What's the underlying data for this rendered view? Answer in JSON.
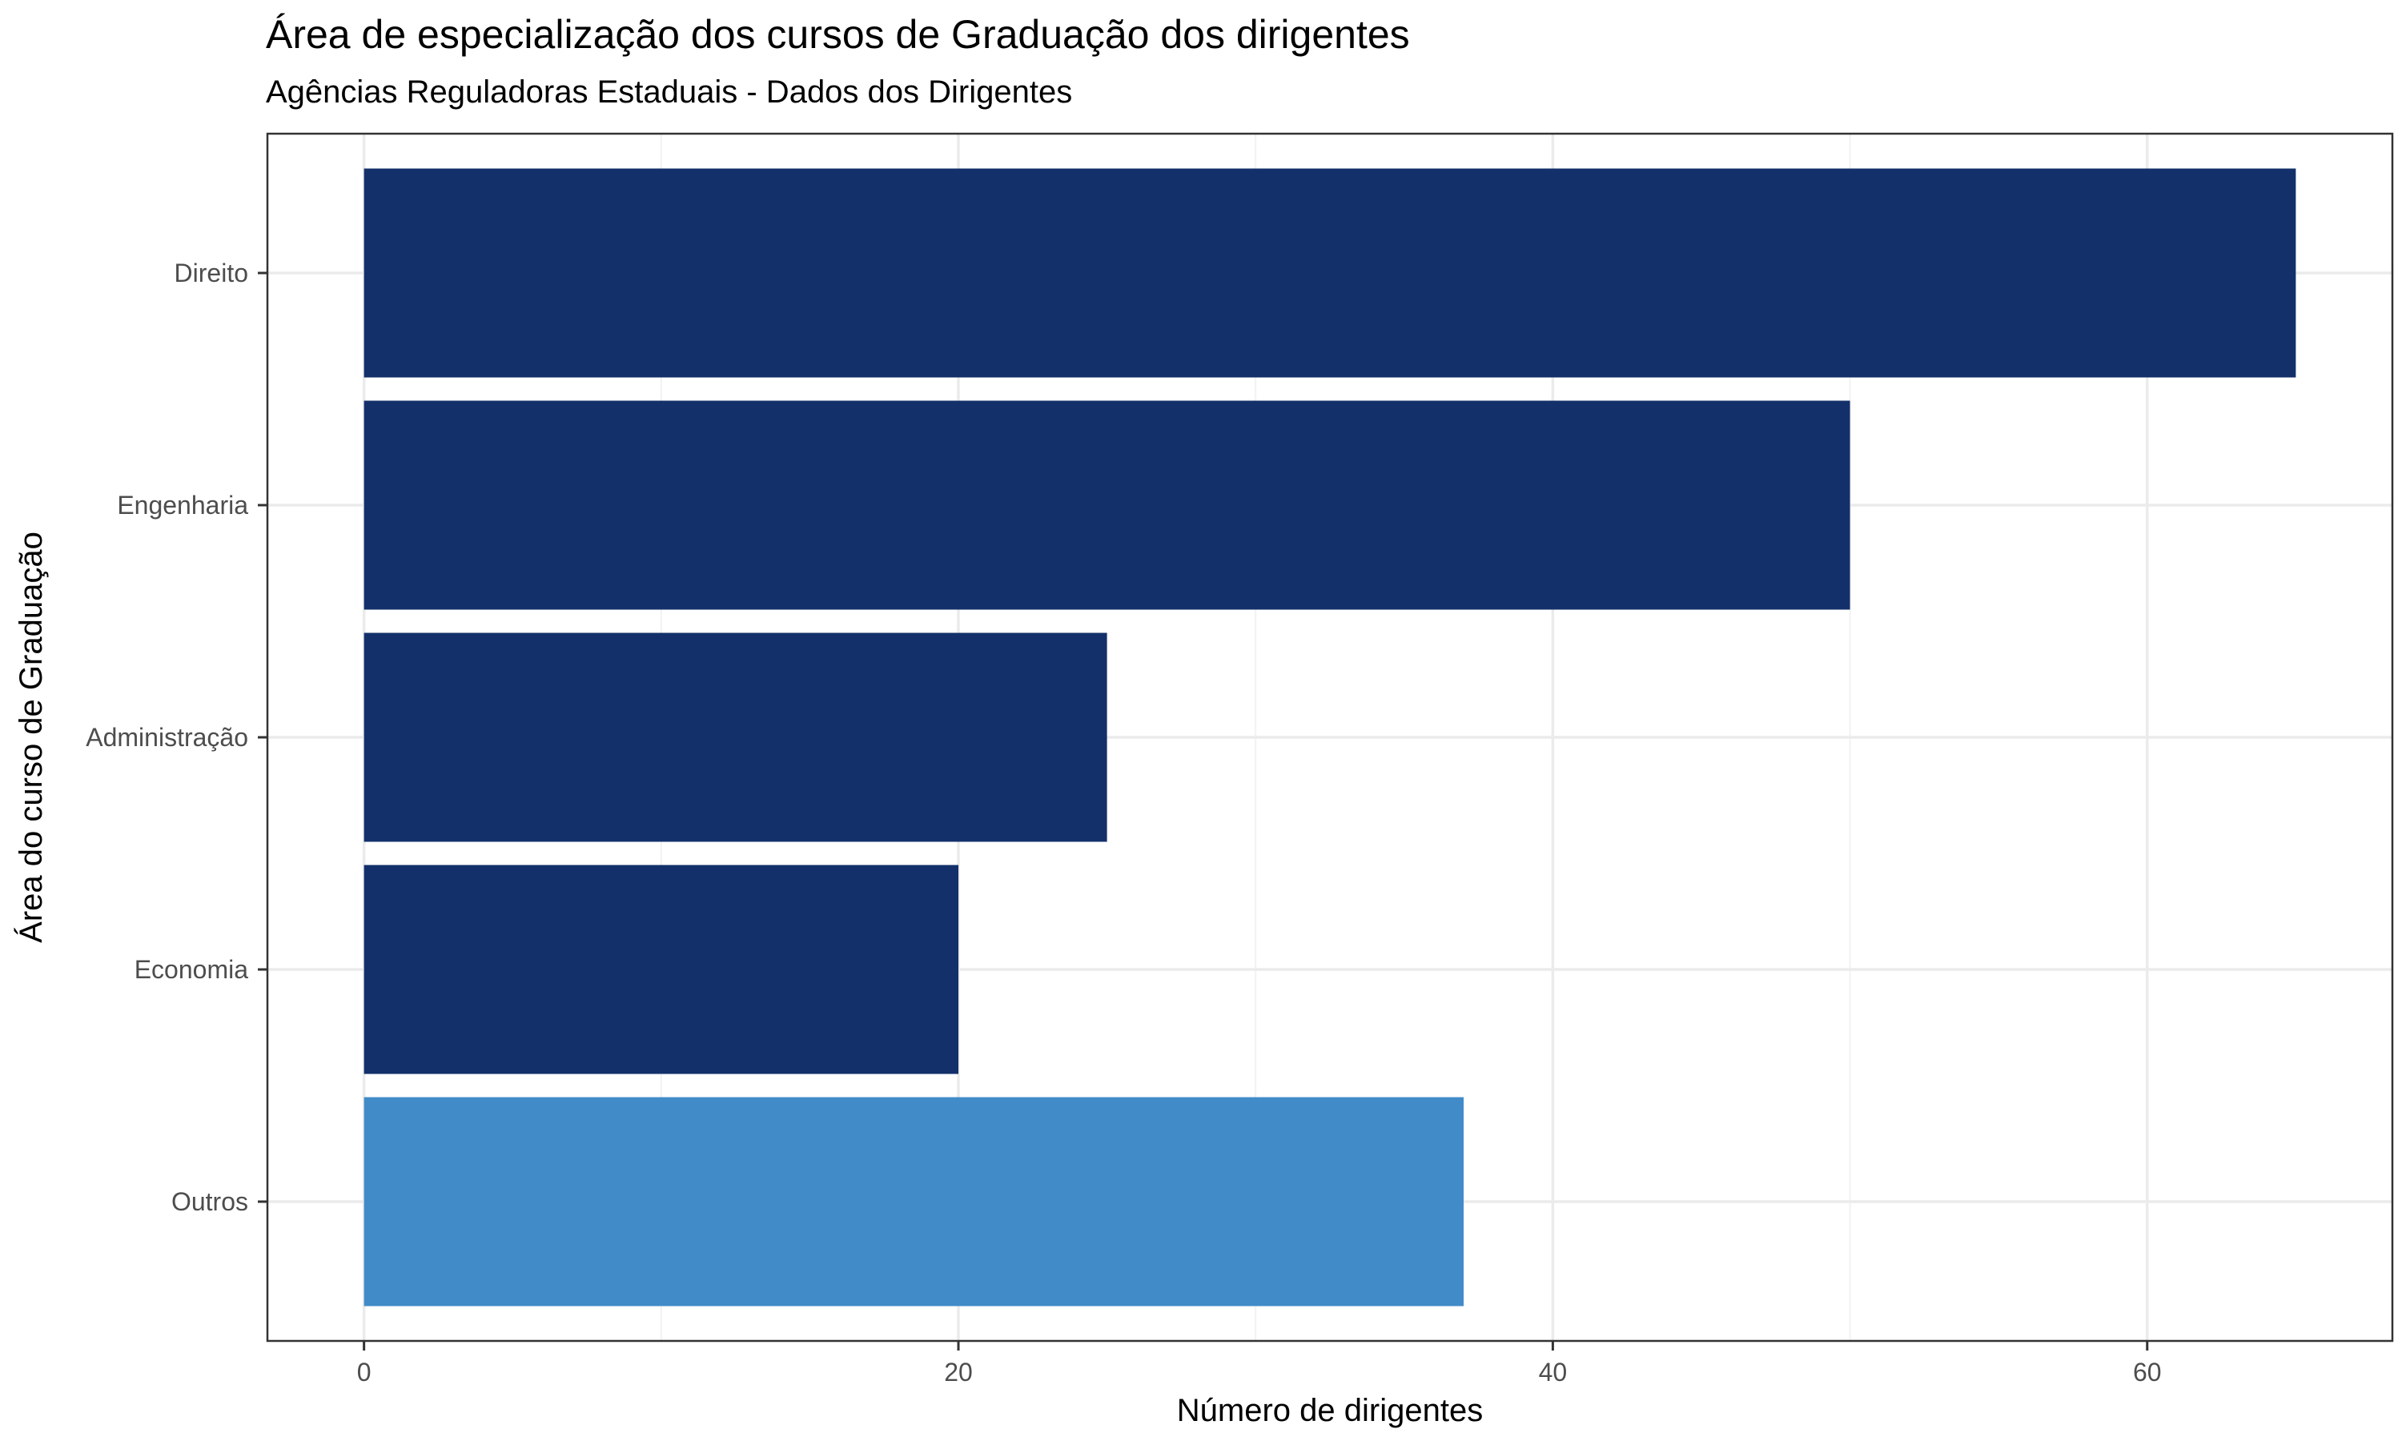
{
  "chart_data": {
    "type": "bar",
    "orientation": "horizontal",
    "title": "Área de especialização dos cursos de Graduação dos dirigentes",
    "subtitle": "Agências Reguladoras Estaduais - Dados dos Dirigentes",
    "xlabel": "Número de dirigentes",
    "ylabel": "Área do curso de Graduação",
    "categories": [
      "Direito",
      "Engenharia",
      "Administração",
      "Economia",
      "Outros"
    ],
    "values": [
      65,
      50,
      25,
      20,
      37
    ],
    "colors": [
      "#13306a",
      "#13306a",
      "#13306a",
      "#13306a",
      "#418bc8"
    ],
    "xlim": [
      -3.25,
      68.25
    ],
    "xticks": [
      0,
      20,
      40,
      60
    ],
    "xtick_labels": [
      "0",
      "20",
      "40",
      "60"
    ],
    "grid": true,
    "legend": "none"
  }
}
